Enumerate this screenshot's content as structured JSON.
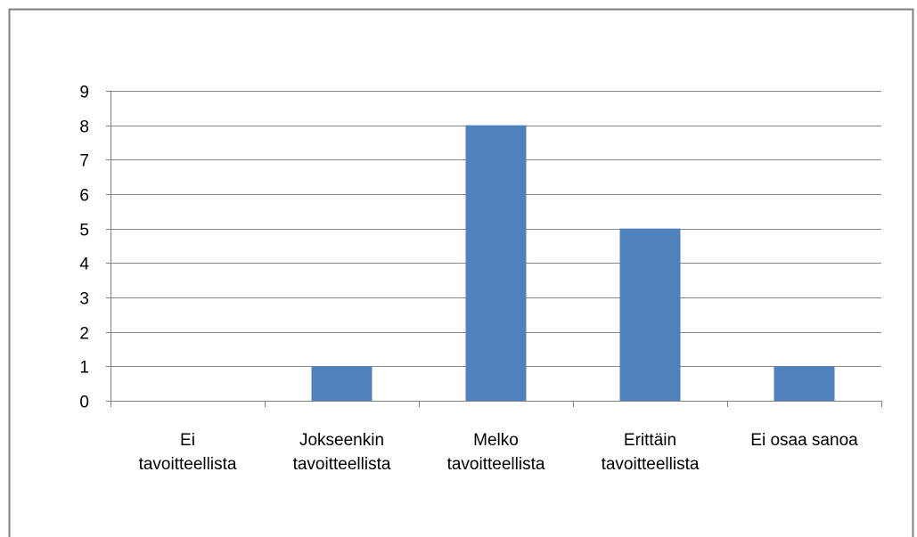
{
  "chart_data": {
    "type": "bar",
    "categories": [
      [
        "Ei",
        "tavoitteellista"
      ],
      [
        "Jokseenkin",
        "tavoitteellista"
      ],
      [
        "Melko",
        "tavoitteellista"
      ],
      [
        "Erittäin",
        "tavoitteellista"
      ],
      [
        "Ei osaa sanoa"
      ]
    ],
    "values": [
      0,
      1,
      8,
      5,
      1
    ],
    "ylim": [
      0,
      9
    ],
    "yticks": [
      "0",
      "1",
      "2",
      "3",
      "4",
      "5",
      "6",
      "7",
      "8",
      "9"
    ],
    "grid": true,
    "legend": "none",
    "bar_color": "#4f81bd",
    "gridline_color": "#878787",
    "frame_color": "#7f7f7f"
  }
}
